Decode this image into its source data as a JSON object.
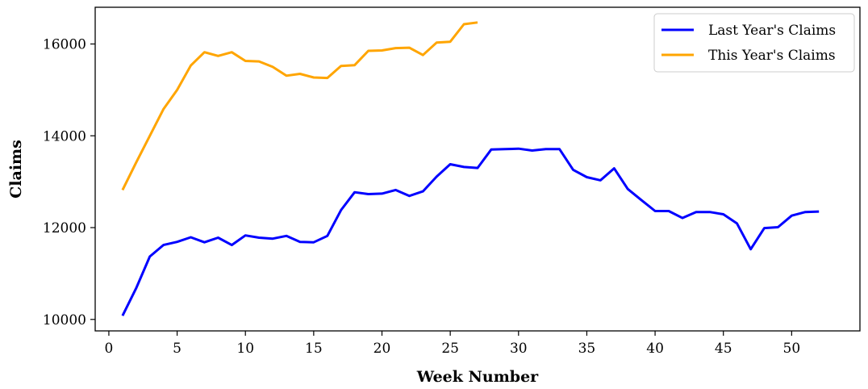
{
  "chart_data": {
    "type": "line",
    "xlabel": "Week Number",
    "ylabel": "Claims",
    "xlim": [
      -1,
      55
    ],
    "ylim": [
      9750,
      16800
    ],
    "xticks": [
      0,
      5,
      10,
      15,
      20,
      25,
      30,
      35,
      40,
      45,
      50
    ],
    "yticks": [
      10000,
      12000,
      14000,
      16000
    ],
    "grid": false,
    "legend_position": "top-right",
    "series": [
      {
        "name": "Last Year's Claims",
        "color": "#0000ff",
        "x": [
          1,
          2,
          3,
          4,
          5,
          6,
          7,
          8,
          9,
          10,
          11,
          12,
          13,
          14,
          15,
          16,
          17,
          18,
          19,
          20,
          21,
          22,
          23,
          24,
          25,
          26,
          27,
          28,
          29,
          30,
          31,
          32,
          33,
          34,
          35,
          36,
          37,
          38,
          39,
          40,
          41,
          42,
          43,
          44,
          45,
          46,
          47,
          48,
          49,
          50,
          51,
          52
        ],
        "values": [
          10080,
          10680,
          11370,
          11620,
          11690,
          11790,
          11680,
          11780,
          11620,
          11830,
          11780,
          11760,
          11820,
          11690,
          11680,
          11820,
          12380,
          12770,
          12730,
          12740,
          12820,
          12690,
          12790,
          13110,
          13380,
          13320,
          13300,
          13700,
          13710,
          13720,
          13680,
          13710,
          13710,
          13260,
          13100,
          13030,
          13290,
          12840,
          12600,
          12360,
          12360,
          12210,
          12340,
          12340,
          12290,
          12090,
          11530,
          11990,
          12010,
          12260,
          12340,
          12350
        ]
      },
      {
        "name": "This Year's Claims",
        "color": "#ffa500",
        "x": [
          1,
          2,
          3,
          4,
          5,
          6,
          7,
          8,
          9,
          10,
          11,
          12,
          13,
          14,
          15,
          16,
          17,
          18,
          19,
          20,
          21,
          22,
          23,
          24,
          25,
          26,
          27
        ],
        "values": [
          12820,
          13420,
          14000,
          14580,
          15000,
          15530,
          15820,
          15740,
          15820,
          15630,
          15620,
          15500,
          15310,
          15350,
          15270,
          15260,
          15520,
          15540,
          15850,
          15860,
          15910,
          15920,
          15760,
          16030,
          16050,
          16430,
          16470
        ]
      }
    ]
  }
}
